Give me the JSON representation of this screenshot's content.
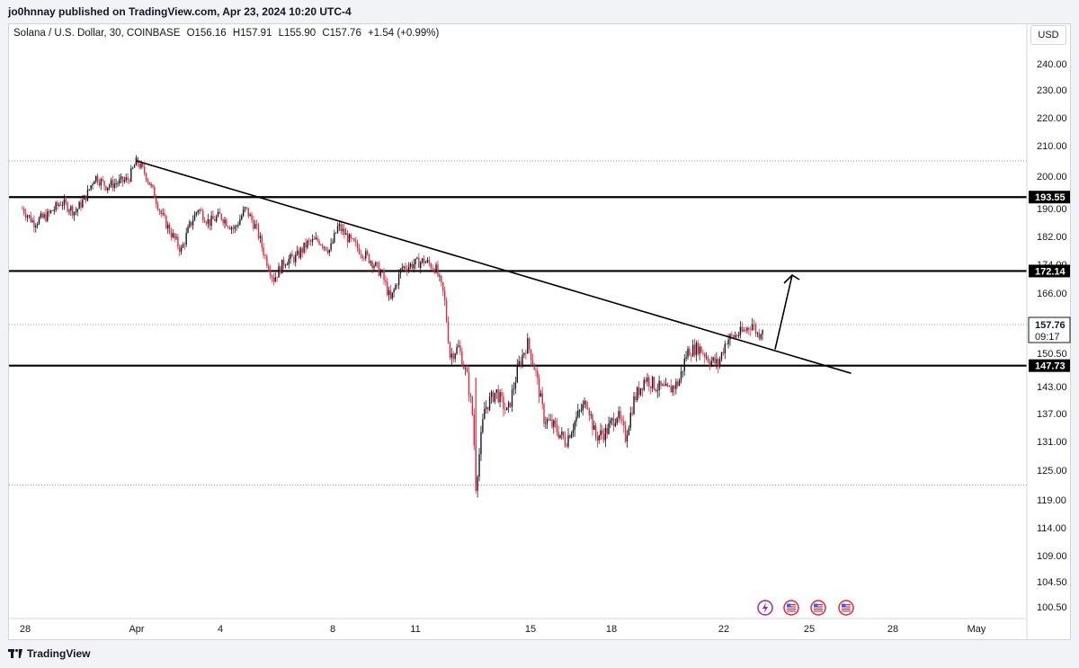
{
  "header": {
    "publisher_text": "jo0hnnay published on TradingView.com, Apr 23, 2024 10:20 UTC-4"
  },
  "legend": {
    "symbol": "Solana / U.S. Dollar, 30, COINBASE",
    "open": "O156.16",
    "high": "H157.91",
    "low": "L155.90",
    "close": "C157.76",
    "change": "+1.54 (+0.99%)"
  },
  "currency_label": "USD",
  "footer": {
    "brand": "TradingView"
  },
  "colors": {
    "candle_up": "#131722",
    "candle_down": "#e0263b",
    "line": "#000000"
  },
  "icons": [
    "lightning-icon",
    "us-flag-icon",
    "us-flag-icon",
    "us-flag-icon"
  ],
  "chart_data": {
    "type": "candlestick",
    "symbol": "SOL/USD",
    "interval": "30",
    "y_ticks": [
      "240.00",
      "230.00",
      "220.00",
      "210.00",
      "200.00",
      "190.00",
      "182.00",
      "174.00",
      "166.00",
      "157.76",
      "150.50",
      "143.00",
      "137.00",
      "131.00",
      "125.00",
      "119.00",
      "114.00",
      "109.00",
      "104.50",
      "100.50"
    ],
    "y_tick_values": [
      240,
      230,
      220,
      210,
      200,
      190,
      182,
      174,
      166,
      157.76,
      150.5,
      143,
      137,
      131,
      125,
      119,
      114,
      109,
      104.5,
      100.5
    ],
    "x_ticks": [
      {
        "label": "28",
        "day": 28.0
      },
      {
        "label": "Apr",
        "day": 32.0
      },
      {
        "label": "4",
        "day": 35.0
      },
      {
        "label": "8",
        "day": 39.0
      },
      {
        "label": "11",
        "day": 42.0
      },
      {
        "label": "15",
        "day": 46.0
      },
      {
        "label": "18",
        "day": 49.0
      },
      {
        "label": "22",
        "day": 53.0
      },
      {
        "label": "25",
        "day": 56.0
      },
      {
        "label": "28",
        "day": 59.0
      },
      {
        "label": "May",
        "day": 62.0
      }
    ],
    "price_path": [
      {
        "day": 27.9,
        "price": 190
      },
      {
        "day": 28.3,
        "price": 186
      },
      {
        "day": 28.8,
        "price": 188
      },
      {
        "day": 29.3,
        "price": 192
      },
      {
        "day": 29.8,
        "price": 189
      },
      {
        "day": 30.2,
        "price": 194
      },
      {
        "day": 30.5,
        "price": 200
      },
      {
        "day": 30.9,
        "price": 197
      },
      {
        "day": 31.3,
        "price": 198
      },
      {
        "day": 31.7,
        "price": 199
      },
      {
        "day": 32.0,
        "price": 205
      },
      {
        "day": 32.3,
        "price": 201
      },
      {
        "day": 32.6,
        "price": 195
      },
      {
        "day": 32.9,
        "price": 188
      },
      {
        "day": 33.3,
        "price": 182
      },
      {
        "day": 33.6,
        "price": 178
      },
      {
        "day": 33.9,
        "price": 185
      },
      {
        "day": 34.2,
        "price": 190
      },
      {
        "day": 34.6,
        "price": 186
      },
      {
        "day": 35.0,
        "price": 188
      },
      {
        "day": 35.5,
        "price": 184
      },
      {
        "day": 35.9,
        "price": 190
      },
      {
        "day": 36.3,
        "price": 184
      },
      {
        "day": 36.6,
        "price": 176
      },
      {
        "day": 36.9,
        "price": 170
      },
      {
        "day": 37.3,
        "price": 175
      },
      {
        "day": 37.7,
        "price": 176
      },
      {
        "day": 38.1,
        "price": 180
      },
      {
        "day": 38.5,
        "price": 181
      },
      {
        "day": 38.9,
        "price": 178
      },
      {
        "day": 39.2,
        "price": 185
      },
      {
        "day": 39.6,
        "price": 181
      },
      {
        "day": 40.0,
        "price": 178
      },
      {
        "day": 40.4,
        "price": 175
      },
      {
        "day": 40.8,
        "price": 171
      },
      {
        "day": 41.1,
        "price": 164
      },
      {
        "day": 41.5,
        "price": 173
      },
      {
        "day": 41.9,
        "price": 174
      },
      {
        "day": 42.3,
        "price": 175
      },
      {
        "day": 42.7,
        "price": 173
      },
      {
        "day": 43.0,
        "price": 165
      },
      {
        "day": 43.2,
        "price": 150
      },
      {
        "day": 43.5,
        "price": 152
      },
      {
        "day": 43.8,
        "price": 145
      },
      {
        "day": 44.0,
        "price": 136
      },
      {
        "day": 44.1,
        "price": 122
      },
      {
        "day": 44.4,
        "price": 138
      },
      {
        "day": 44.8,
        "price": 142
      },
      {
        "day": 45.2,
        "price": 137
      },
      {
        "day": 45.6,
        "price": 148
      },
      {
        "day": 45.9,
        "price": 153
      },
      {
        "day": 46.2,
        "price": 146
      },
      {
        "day": 46.5,
        "price": 136
      },
      {
        "day": 46.9,
        "price": 134
      },
      {
        "day": 47.3,
        "price": 131
      },
      {
        "day": 47.7,
        "price": 136
      },
      {
        "day": 48.1,
        "price": 140
      },
      {
        "day": 48.4,
        "price": 132
      },
      {
        "day": 48.8,
        "price": 133
      },
      {
        "day": 49.2,
        "price": 137
      },
      {
        "day": 49.5,
        "price": 132
      },
      {
        "day": 49.8,
        "price": 140
      },
      {
        "day": 50.2,
        "price": 145
      },
      {
        "day": 50.6,
        "price": 143
      },
      {
        "day": 51.0,
        "price": 142
      },
      {
        "day": 51.4,
        "price": 144
      },
      {
        "day": 51.7,
        "price": 151
      },
      {
        "day": 52.1,
        "price": 152
      },
      {
        "day": 52.5,
        "price": 149
      },
      {
        "day": 52.8,
        "price": 148
      },
      {
        "day": 53.1,
        "price": 154
      },
      {
        "day": 53.4,
        "price": 155
      },
      {
        "day": 53.7,
        "price": 156
      },
      {
        "day": 54.0,
        "price": 158
      },
      {
        "day": 54.2,
        "price": 155
      },
      {
        "day": 54.4,
        "price": 157.76
      }
    ],
    "horizontal_levels": [
      {
        "price": 193.55,
        "label": "193.55",
        "style": "solid"
      },
      {
        "price": 172.14,
        "label": "172.14",
        "style": "solid"
      },
      {
        "price": 147.73,
        "label": "147.73",
        "style": "solid"
      },
      {
        "price": 205,
        "label": "",
        "style": "dotted"
      },
      {
        "price": 157.76,
        "label": "",
        "style": "dotted"
      },
      {
        "price": 122,
        "label": "",
        "style": "dotted"
      }
    ],
    "trendline": {
      "from": {
        "day": 32.0,
        "price": 205
      },
      "to": {
        "day": 57.5,
        "price": 146
      }
    },
    "arrow": {
      "from": {
        "day": 54.8,
        "price": 151.5
      },
      "to": {
        "day": 55.4,
        "price": 171
      }
    },
    "last_price": {
      "label": "157.76",
      "countdown": "09:17"
    }
  }
}
